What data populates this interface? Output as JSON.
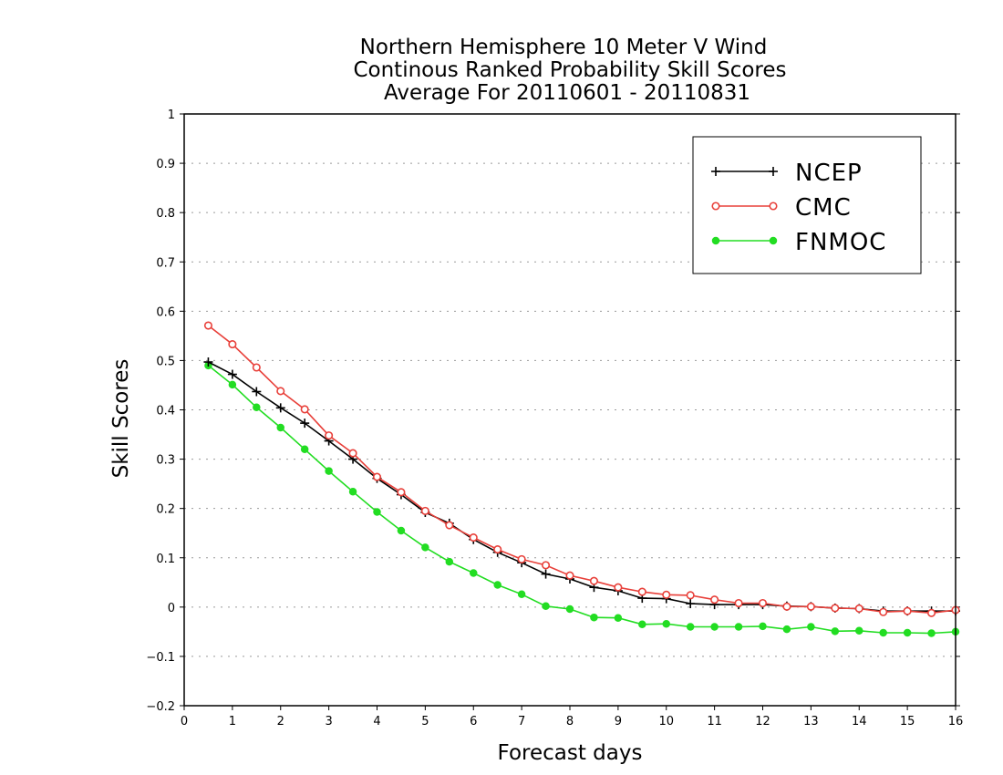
{
  "chart_data": {
    "type": "line",
    "title": [
      "Northern Hemisphere 10 Meter V Wind",
      "Continous Ranked Probability Skill Scores",
      "Average For 20110601 - 20110831"
    ],
    "xlabel": "Forecast days",
    "ylabel": "Skill Scores",
    "xlim": [
      0,
      16
    ],
    "ylim": [
      -0.2,
      1
    ],
    "xticks": [
      0,
      1,
      2,
      3,
      4,
      5,
      6,
      7,
      8,
      9,
      10,
      11,
      12,
      13,
      14,
      15,
      16
    ],
    "yticks": [
      -0.2,
      -0.1,
      0,
      0.1,
      0.2,
      0.3,
      0.4,
      0.5,
      0.6,
      0.7,
      0.8,
      0.9,
      1
    ],
    "ytick_labels": [
      "−0.2",
      "−0.1",
      "0",
      "0.1",
      "0.2",
      "0.3",
      "0.4",
      "0.5",
      "0.6",
      "0.7",
      "0.8",
      "0.9",
      "1"
    ],
    "grid": "horizontal dotted",
    "legend_position": "top-right",
    "x": [
      0.5,
      1,
      1.5,
      2,
      2.5,
      3,
      3.5,
      4,
      4.5,
      5,
      5.5,
      6,
      6.5,
      7,
      7.5,
      8,
      8.5,
      9,
      9.5,
      10,
      10.5,
      11,
      11.5,
      12,
      12.5,
      13,
      13.5,
      14,
      14.5,
      15,
      15.5,
      16
    ],
    "series": [
      {
        "name": "NCEP",
        "color": "#000000",
        "marker": "plus",
        "values": [
          0.497,
          0.472,
          0.437,
          0.404,
          0.373,
          0.337,
          0.3,
          0.261,
          0.228,
          0.192,
          0.17,
          0.137,
          0.111,
          0.09,
          0.067,
          0.057,
          0.04,
          0.033,
          0.018,
          0.017,
          0.007,
          0.005,
          0.005,
          0.005,
          0.002,
          0.001,
          -0.002,
          -0.003,
          -0.008,
          -0.008,
          -0.008,
          -0.008
        ]
      },
      {
        "name": "CMC",
        "color": "#e8403a",
        "marker": "open-circle",
        "values": [
          0.571,
          0.533,
          0.486,
          0.438,
          0.401,
          0.348,
          0.312,
          0.264,
          0.233,
          0.195,
          0.166,
          0.141,
          0.117,
          0.097,
          0.085,
          0.064,
          0.053,
          0.04,
          0.031,
          0.025,
          0.024,
          0.015,
          0.008,
          0.008,
          0.001,
          0.001,
          -0.002,
          -0.003,
          -0.01,
          -0.008,
          -0.012,
          -0.006
        ]
      },
      {
        "name": "FNMOC",
        "color": "#22dd22",
        "marker": "filled-circle",
        "values": [
          0.49,
          0.451,
          0.405,
          0.364,
          0.32,
          0.276,
          0.234,
          0.193,
          0.155,
          0.121,
          0.092,
          0.069,
          0.045,
          0.026,
          0.002,
          -0.004,
          -0.021,
          -0.022,
          -0.035,
          -0.034,
          -0.04,
          -0.04,
          -0.04,
          -0.039,
          -0.045,
          -0.04,
          -0.049,
          -0.048,
          -0.052,
          -0.052,
          -0.053,
          -0.05
        ]
      }
    ]
  }
}
